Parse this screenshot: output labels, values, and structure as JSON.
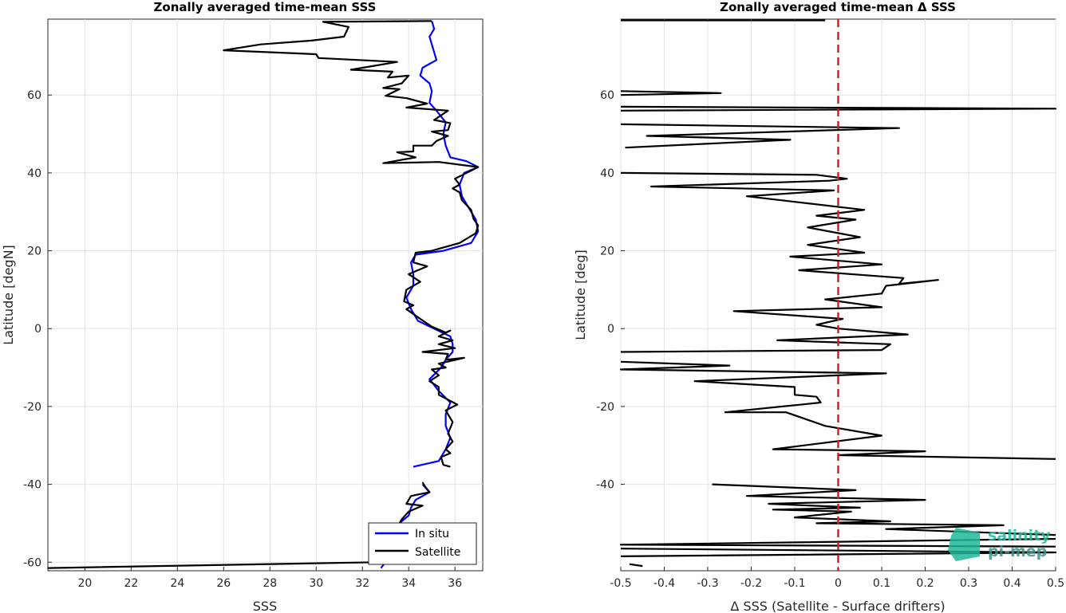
{
  "chart_data": [
    {
      "type": "line",
      "title": "Zonally averaged time-mean SSS",
      "xlabel": "SSS",
      "ylabel": "Latitude [degN]",
      "xlim": [
        18.4,
        37.2
      ],
      "ylim": [
        -62.2,
        79.5
      ],
      "xticks": [
        20,
        22,
        24,
        26,
        28,
        30,
        32,
        34,
        36
      ],
      "yticks": [
        -60,
        -40,
        -20,
        0,
        20,
        40,
        60
      ],
      "grid": true,
      "legend_position": "bottom-right",
      "series": [
        {
          "name": "In situ",
          "color": "#0000ff",
          "points": [
            [
              35.0,
              79
            ],
            [
              35.1,
              77
            ],
            [
              34.9,
              75
            ],
            [
              35.0,
              73
            ],
            [
              35.1,
              71
            ],
            [
              35.2,
              69
            ],
            [
              34.6,
              67
            ],
            [
              34.5,
              65
            ],
            [
              34.9,
              63
            ],
            [
              35.0,
              61
            ],
            [
              34.9,
              58
            ],
            [
              35.2,
              56
            ],
            [
              35.6,
              53
            ],
            [
              35.5,
              50
            ],
            [
              35.6,
              47
            ],
            [
              35.8,
              44
            ],
            [
              36.5,
              43
            ],
            [
              37.0,
              41.5
            ],
            [
              36.4,
              40
            ],
            [
              36.2,
              37
            ],
            [
              36.3,
              34
            ],
            [
              36.6,
              31
            ],
            [
              36.9,
              28
            ],
            [
              37.0,
              25
            ],
            [
              36.7,
              22
            ],
            [
              35.5,
              20
            ],
            [
              34.3,
              19
            ],
            [
              34.1,
              17
            ],
            [
              34.2,
              14
            ],
            [
              34.2,
              11
            ],
            [
              33.9,
              8
            ],
            [
              34.1,
              5
            ],
            [
              34.4,
              2
            ],
            [
              35.1,
              0
            ],
            [
              35.8,
              -2
            ],
            [
              35.9,
              -4
            ],
            [
              35.9,
              -6
            ],
            [
              35.6,
              -8
            ],
            [
              35.4,
              -10
            ],
            [
              34.9,
              -13
            ],
            [
              35.3,
              -16
            ],
            [
              35.8,
              -19
            ],
            [
              35.6,
              -22
            ],
            [
              35.6,
              -25
            ],
            [
              35.8,
              -28
            ],
            [
              35.6,
              -31
            ],
            [
              35.3,
              -34
            ],
            [
              34.2,
              -35.5
            ]
          ]
        },
        {
          "name": "In situ",
          "color": "#0000ff",
          "points": [
            [
              34.6,
              -40
            ],
            [
              34.9,
              -42
            ],
            [
              34.3,
              -44
            ],
            [
              34.1,
              -46
            ],
            [
              34.0,
              -48
            ],
            [
              33.6,
              -50
            ],
            [
              33.3,
              -53
            ],
            [
              33.2,
              -56
            ],
            [
              33.3,
              -58
            ],
            [
              33.0,
              -60
            ],
            [
              32.8,
              -61.5
            ]
          ]
        },
        {
          "name": "Satellite",
          "color": "#000000",
          "points": [
            [
              35.0,
              79
            ],
            [
              30.3,
              78.8
            ],
            [
              31.4,
              77.5
            ],
            [
              31.2,
              75
            ],
            [
              29.8,
              74
            ],
            [
              27.6,
              73
            ],
            [
              26.0,
              71.5
            ],
            [
              30.0,
              70.5
            ],
            [
              30.1,
              69.5
            ],
            [
              33.5,
              68.5
            ],
            [
              31.5,
              66.5
            ],
            [
              33.3,
              66
            ],
            [
              33.1,
              64.5
            ],
            [
              34.0,
              65
            ],
            [
              33.7,
              63
            ],
            [
              32.9,
              61.8
            ],
            [
              33.6,
              61.5
            ],
            [
              33.0,
              59.8
            ],
            [
              33.9,
              59.2
            ],
            [
              34.8,
              57.8
            ],
            [
              33.9,
              56.8
            ],
            [
              35.7,
              56
            ],
            [
              35.1,
              53.6
            ],
            [
              35.8,
              52.8
            ],
            [
              35.7,
              51
            ],
            [
              35.0,
              50.6
            ],
            [
              35.7,
              49.5
            ],
            [
              35.2,
              48.2
            ],
            [
              35.0,
              47
            ],
            [
              34.2,
              47
            ],
            [
              34.2,
              45.5
            ],
            [
              33.5,
              45.3
            ],
            [
              34.3,
              44
            ],
            [
              32.9,
              42.5
            ],
            [
              35.3,
              42.8
            ],
            [
              37.0,
              41.5
            ],
            [
              36.0,
              38.5
            ],
            [
              36.2,
              37.0
            ],
            [
              35.9,
              36.0
            ],
            [
              36.2,
              35.0
            ],
            [
              36.3,
              33
            ],
            [
              36.7,
              30.5
            ],
            [
              36.8,
              28.2
            ],
            [
              37.0,
              26.5
            ],
            [
              36.9,
              24.5
            ],
            [
              36.2,
              22
            ],
            [
              35.0,
              20
            ],
            [
              34.3,
              19.5
            ],
            [
              34.2,
              17
            ],
            [
              34.8,
              16
            ],
            [
              34.0,
              14
            ],
            [
              34.5,
              12
            ],
            [
              33.9,
              10
            ],
            [
              33.8,
              7
            ],
            [
              34.2,
              6
            ],
            [
              33.9,
              5
            ],
            [
              34.5,
              2.5
            ],
            [
              35.0,
              0.5
            ],
            [
              35.6,
              -1
            ],
            [
              35.8,
              -0.5
            ],
            [
              35.3,
              -2
            ],
            [
              35.9,
              -3
            ],
            [
              35.3,
              -4
            ],
            [
              36.0,
              -5
            ],
            [
              34.6,
              -6
            ],
            [
              35.7,
              -6.5
            ],
            [
              35.6,
              -8
            ],
            [
              36.4,
              -7.5
            ],
            [
              35.3,
              -9
            ],
            [
              35.6,
              -10
            ],
            [
              35.0,
              -10.5
            ],
            [
              35.3,
              -12
            ],
            [
              34.9,
              -13.5
            ],
            [
              35.3,
              -15
            ],
            [
              35.3,
              -17
            ],
            [
              36.1,
              -19.5
            ],
            [
              35.6,
              -21
            ],
            [
              35.9,
              -24
            ],
            [
              35.7,
              -27
            ],
            [
              35.9,
              -29
            ],
            [
              35.6,
              -31
            ],
            [
              35.8,
              -32
            ],
            [
              35.4,
              -33
            ],
            [
              35.5,
              -35
            ],
            [
              35.8,
              -35.5
            ]
          ]
        },
        {
          "name": "Satellite",
          "color": "#000000",
          "points": [
            [
              34.6,
              -39.5
            ],
            [
              34.7,
              -40.5
            ],
            [
              34.9,
              -42
            ],
            [
              34.1,
              -43
            ],
            [
              33.9,
              -45
            ],
            [
              34.6,
              -45.5
            ],
            [
              34.0,
              -47
            ],
            [
              33.7,
              -49
            ],
            [
              33.4,
              -52
            ],
            [
              33.2,
              -55
            ],
            [
              33.4,
              -57
            ],
            [
              33.1,
              -59
            ],
            [
              32.6,
              -60
            ],
            [
              18.4,
              -61.5
            ]
          ]
        }
      ]
    },
    {
      "type": "line",
      "title": "Zonally averaged time-mean Δ SSS",
      "xlabel": "Δ SSS (Satellite - Surface drifters)",
      "ylabel": "Latitude [deg]",
      "xlim": [
        -0.5,
        0.5
      ],
      "ylim": [
        -62.2,
        79.5
      ],
      "xticks": [
        -0.5,
        -0.4,
        -0.3,
        -0.2,
        -0.1,
        0,
        0.1,
        0.2,
        0.3,
        0.4,
        0.5
      ],
      "xticklabels": [
        "-0.5",
        "-0.4",
        "-0.3",
        "-0.2",
        "-0.1",
        "0",
        "0.1",
        "0.2",
        "0.3",
        "0.4",
        "0.5"
      ],
      "yticks": [
        -40,
        -20,
        0,
        20,
        40,
        60
      ],
      "grid": true,
      "reference_line": {
        "x": 0,
        "color": "#e01a1a",
        "style": "dashed"
      },
      "series": [
        {
          "color": "#000000",
          "points": [
            [
              -0.5,
              79.2
            ],
            [
              -0.03,
              79.2
            ]
          ]
        },
        {
          "color": "#000000",
          "points": [
            [
              -0.5,
              61
            ],
            [
              -0.27,
              60.5
            ],
            [
              -0.5,
              60
            ]
          ]
        },
        {
          "color": "#000000",
          "points": [
            [
              -0.5,
              57
            ],
            [
              0.5,
              56.5
            ],
            [
              -0.5,
              56
            ]
          ]
        },
        {
          "color": "#000000",
          "points": [
            [
              -0.5,
              52.5
            ],
            [
              0.14,
              51.5
            ],
            [
              -0.44,
              49.5
            ],
            [
              -0.11,
              48.5
            ],
            [
              -0.49,
              46.5
            ]
          ]
        },
        {
          "color": "#000000",
          "points": [
            [
              -0.5,
              40
            ],
            [
              -0.05,
              39.5
            ],
            [
              0.02,
              38.5
            ],
            [
              -0.02,
              38
            ],
            [
              -0.43,
              36.5
            ],
            [
              -0.01,
              35.5
            ],
            [
              -0.21,
              34
            ],
            [
              0.06,
              30.5
            ],
            [
              -0.05,
              29
            ],
            [
              0.04,
              28
            ],
            [
              -0.07,
              26
            ],
            [
              0.05,
              23.5
            ],
            [
              -0.07,
              21.5
            ],
            [
              0.06,
              19.5
            ],
            [
              -0.11,
              18.5
            ],
            [
              0.1,
              16.5
            ],
            [
              -0.09,
              15
            ],
            [
              0.15,
              13
            ],
            [
              0.14,
              11.5
            ],
            [
              0.23,
              12.5
            ],
            [
              0.11,
              11
            ],
            [
              0.1,
              9
            ],
            [
              -0.03,
              7.5
            ],
            [
              0.1,
              5.5
            ],
            [
              -0.24,
              4.5
            ],
            [
              0.01,
              2.5
            ],
            [
              -0.05,
              1
            ],
            [
              0.0,
              0
            ],
            [
              0.16,
              -1.5
            ],
            [
              -0.14,
              -3
            ],
            [
              0.12,
              -4
            ],
            [
              0.1,
              -5.5
            ],
            [
              -0.5,
              -6
            ]
          ]
        },
        {
          "color": "#000000",
          "points": [
            [
              -0.5,
              -8.5
            ],
            [
              -0.25,
              -9.5
            ],
            [
              -0.5,
              -10.5
            ],
            [
              0.11,
              -11.5
            ],
            [
              -0.33,
              -13.5
            ],
            [
              -0.1,
              -15
            ],
            [
              -0.1,
              -17
            ],
            [
              -0.05,
              -17.5
            ],
            [
              -0.04,
              -19
            ],
            [
              -0.26,
              -21.5
            ],
            [
              -0.12,
              -21.5
            ],
            [
              -0.03,
              -25
            ],
            [
              0.1,
              -27.5
            ],
            [
              -0.15,
              -31
            ],
            [
              0.2,
              -31.5
            ],
            [
              0.0,
              -32.5
            ],
            [
              0.5,
              -33.5
            ]
          ]
        },
        {
          "color": "#000000",
          "points": [
            [
              -0.29,
              -40
            ],
            [
              0.04,
              -41.5
            ],
            [
              -0.21,
              -43
            ],
            [
              0.2,
              -44
            ],
            [
              -0.16,
              -45
            ],
            [
              0.05,
              -46
            ],
            [
              -0.15,
              -46.5
            ],
            [
              0.03,
              -47
            ],
            [
              -0.1,
              -48.5
            ],
            [
              0.12,
              -49.5
            ],
            [
              -0.05,
              -50
            ],
            [
              0.38,
              -50.5
            ],
            [
              0.11,
              -51.5
            ],
            [
              0.5,
              -53
            ]
          ]
        },
        {
          "color": "#000000",
          "points": [
            [
              0.5,
              -54
            ],
            [
              -0.5,
              -55.5
            ],
            [
              0.5,
              -56
            ]
          ]
        },
        {
          "color": "#000000",
          "points": [
            [
              -0.5,
              -56.5
            ],
            [
              0.5,
              -57.5
            ],
            [
              -0.5,
              -58.5
            ]
          ]
        },
        {
          "color": "#000000",
          "points": [
            [
              -0.48,
              -60.5
            ],
            [
              -0.45,
              -61
            ]
          ]
        }
      ]
    }
  ],
  "logo": {
    "line1": "salinity",
    "line2": "pi-mep"
  }
}
